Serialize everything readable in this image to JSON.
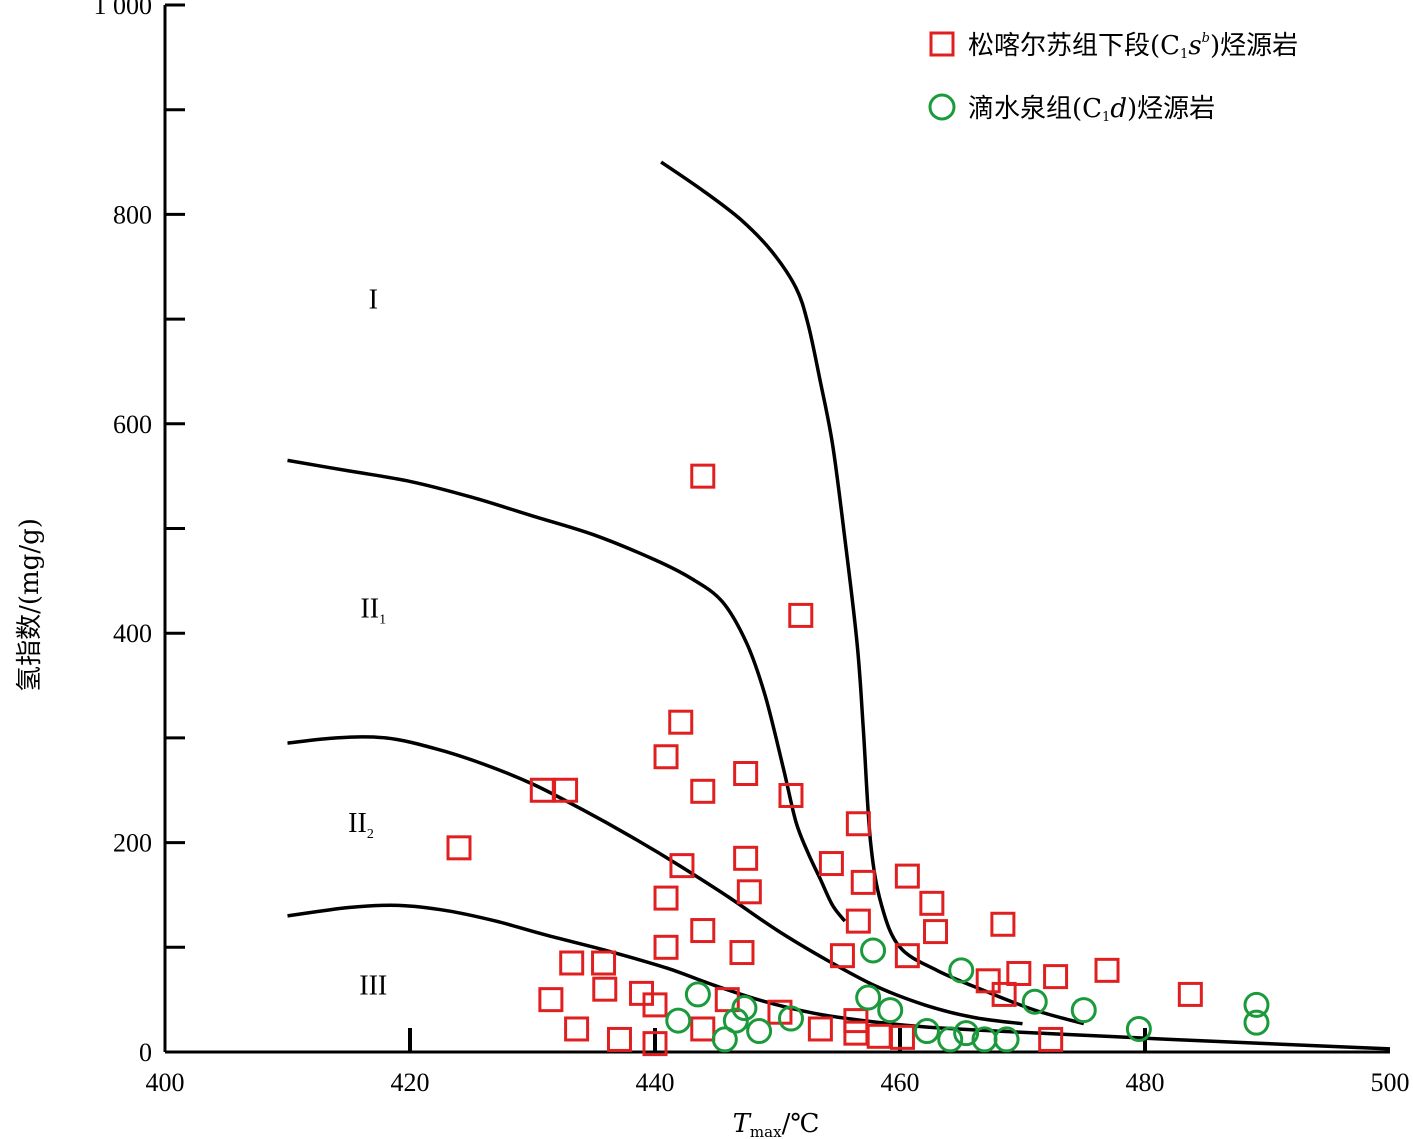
{
  "chart_data": {
    "type": "scatter",
    "title": "",
    "xlabel": {
      "main": "T",
      "sub": "max",
      "unit": "/℃"
    },
    "ylabel": "氢指数/(mg/g)",
    "xlim": [
      400,
      500
    ],
    "ylim": [
      0,
      1000
    ],
    "x_ticks": [
      400,
      420,
      440,
      460,
      480,
      500
    ],
    "x_tick_labels": [
      "400",
      "420",
      "440",
      "460",
      "480",
      "500"
    ],
    "y_ticks": [
      0,
      200,
      400,
      600,
      800,
      1000
    ],
    "y_tick_labels": [
      "0",
      "200",
      "400",
      "600",
      "800",
      "1 000"
    ],
    "legend_position": "top-right",
    "grid": false,
    "region_labels": [
      {
        "main": "I",
        "sub": "",
        "x": 417,
        "y": 710
      },
      {
        "main": "II",
        "sub": "1",
        "x": 417,
        "y": 415
      },
      {
        "main": "II",
        "sub": "2",
        "x": 416,
        "y": 210
      },
      {
        "main": "III",
        "sub": "",
        "x": 417,
        "y": 55
      }
    ],
    "boundary_curves": [
      {
        "points": [
          [
            440.5,
            850
          ],
          [
            444,
            822
          ],
          [
            447,
            795
          ],
          [
            449.5,
            765
          ],
          [
            451.5,
            730
          ],
          [
            452.5,
            695
          ],
          [
            453.5,
            640
          ],
          [
            454.5,
            580
          ],
          [
            455.5,
            490
          ],
          [
            456.5,
            390
          ],
          [
            457,
            310
          ],
          [
            457.6,
            200
          ],
          [
            458.5,
            140
          ],
          [
            460,
            100
          ],
          [
            463,
            78
          ],
          [
            467,
            58
          ],
          [
            471,
            40
          ],
          [
            475,
            27
          ]
        ]
      },
      {
        "points": [
          [
            410,
            565
          ],
          [
            415,
            555
          ],
          [
            420,
            545
          ],
          [
            425,
            530
          ],
          [
            430,
            512
          ],
          [
            435,
            494
          ],
          [
            440,
            470
          ],
          [
            443,
            452
          ],
          [
            445.5,
            430
          ],
          [
            447.5,
            390
          ],
          [
            449,
            340
          ],
          [
            450.5,
            270
          ],
          [
            451.5,
            220
          ],
          [
            452.5,
            190
          ],
          [
            453.5,
            165
          ],
          [
            454.5,
            140
          ],
          [
            455.5,
            125
          ]
        ]
      },
      {
        "points": [
          [
            410,
            295
          ],
          [
            414,
            300
          ],
          [
            418,
            300
          ],
          [
            422,
            290
          ],
          [
            426,
            275
          ],
          [
            430,
            256
          ],
          [
            434,
            232
          ],
          [
            438,
            206
          ],
          [
            442,
            178
          ],
          [
            446,
            148
          ],
          [
            450,
            116
          ],
          [
            454,
            88
          ],
          [
            458,
            63
          ],
          [
            462,
            45
          ],
          [
            466,
            33
          ],
          [
            470,
            27
          ]
        ]
      },
      {
        "points": [
          [
            410,
            130
          ],
          [
            415,
            138
          ],
          [
            419,
            140
          ],
          [
            423,
            135
          ],
          [
            427,
            125
          ],
          [
            431,
            112
          ],
          [
            436,
            97
          ],
          [
            441,
            80
          ],
          [
            445,
            63
          ],
          [
            449,
            48
          ],
          [
            453,
            37
          ],
          [
            457,
            30
          ],
          [
            462,
            24
          ],
          [
            468,
            20
          ],
          [
            475,
            16
          ],
          [
            482,
            12
          ],
          [
            490,
            8
          ],
          [
            500,
            3
          ]
        ]
      }
    ],
    "series": [
      {
        "name": "松喀尔苏组下段(C1sb)烃源岩",
        "legend_parts": {
          "pre": "松喀尔苏组下段(C",
          "sub": "1",
          "ital": "s",
          "sup": "b",
          "post": ")烃源岩"
        },
        "marker": "square",
        "color": "#e02020",
        "points": [
          [
            424,
            195
          ],
          [
            430.8,
            250
          ],
          [
            432.7,
            250
          ],
          [
            431.5,
            50
          ],
          [
            433.2,
            85
          ],
          [
            433.6,
            22
          ],
          [
            435.8,
            85
          ],
          [
            435.9,
            60
          ],
          [
            437.1,
            12
          ],
          [
            438.9,
            56
          ],
          [
            440,
            45
          ],
          [
            440,
            8
          ],
          [
            440.9,
            282
          ],
          [
            440.9,
            147
          ],
          [
            440.9,
            100
          ],
          [
            442.1,
            315
          ],
          [
            442.2,
            178
          ],
          [
            443.9,
            550
          ],
          [
            443.9,
            249
          ],
          [
            443.9,
            116
          ],
          [
            443.9,
            22
          ],
          [
            445.9,
            50
          ],
          [
            447.1,
            95
          ],
          [
            447.4,
            266
          ],
          [
            447.4,
            185
          ],
          [
            447.7,
            153
          ],
          [
            450.2,
            38
          ],
          [
            451.1,
            245
          ],
          [
            451.9,
            417
          ],
          [
            453.5,
            22
          ],
          [
            454.4,
            180
          ],
          [
            455.3,
            92
          ],
          [
            456.4,
            30
          ],
          [
            456.4,
            18
          ],
          [
            456.6,
            218
          ],
          [
            456.6,
            125
          ],
          [
            457,
            162
          ],
          [
            458.3,
            15
          ],
          [
            460.2,
            14
          ],
          [
            460.6,
            168
          ],
          [
            460.6,
            92
          ],
          [
            462.6,
            142
          ],
          [
            462.9,
            115
          ],
          [
            467.2,
            68
          ],
          [
            468.4,
            122
          ],
          [
            468.5,
            55
          ],
          [
            469.7,
            75
          ],
          [
            472.3,
            12
          ],
          [
            472.7,
            72
          ],
          [
            476.9,
            78
          ],
          [
            483.7,
            55
          ]
        ]
      },
      {
        "name": "滴水泉组(C1d)烃源岩",
        "legend_parts": {
          "pre": "滴水泉组(C",
          "sub": "1",
          "ital": "d",
          "sup": "",
          "post": ")烃源岩"
        },
        "marker": "circle",
        "color": "#1a9a3a",
        "points": [
          [
            441.9,
            30
          ],
          [
            443.5,
            55
          ],
          [
            445.7,
            12
          ],
          [
            446.6,
            30
          ],
          [
            447.3,
            42
          ],
          [
            448.5,
            20
          ],
          [
            451.1,
            32
          ],
          [
            457.4,
            52
          ],
          [
            457.8,
            97
          ],
          [
            459.2,
            40
          ],
          [
            462.2,
            20
          ],
          [
            464.1,
            12
          ],
          [
            465,
            78
          ],
          [
            465.4,
            18
          ],
          [
            466.9,
            12
          ],
          [
            468.7,
            12
          ],
          [
            471,
            48
          ],
          [
            475,
            40
          ],
          [
            479.5,
            22
          ],
          [
            489.1,
            45
          ],
          [
            489.1,
            28
          ]
        ]
      }
    ]
  }
}
